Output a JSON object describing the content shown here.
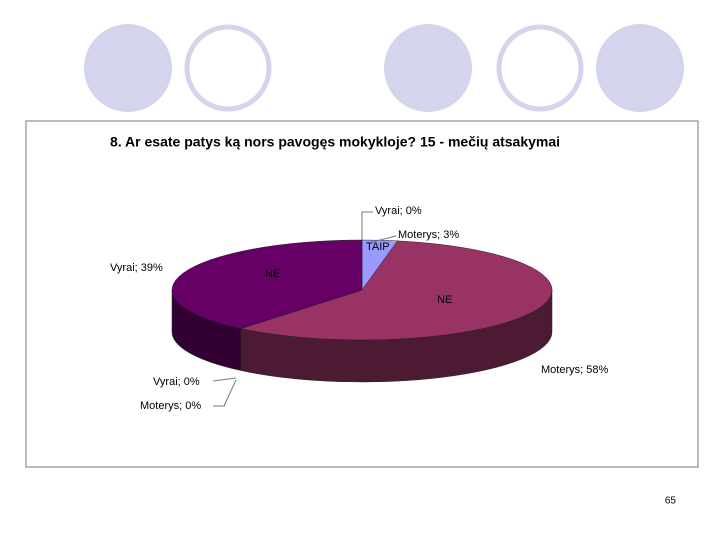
{
  "slide": {
    "page_number": "65"
  },
  "chart_data": {
    "type": "pie",
    "title": "8. Ar esate patys ką nors pavogęs mokykloje?   15 - mečių atsakymai",
    "values": [
      0,
      3,
      58,
      0,
      0,
      39
    ],
    "value_labels": [
      "Vyrai; 0%",
      "Moterys; 3%",
      "Moterys; 58%",
      "Vyrai; 0%",
      "Moterys; 0%",
      "Vyrai; 39%"
    ],
    "colors": [
      "#6666cc",
      "#9999ff",
      "#993366",
      "#ffffcc",
      "#ccffff",
      "#660066"
    ],
    "annotations": [
      "TAIP",
      "NE",
      "NE"
    ]
  }
}
